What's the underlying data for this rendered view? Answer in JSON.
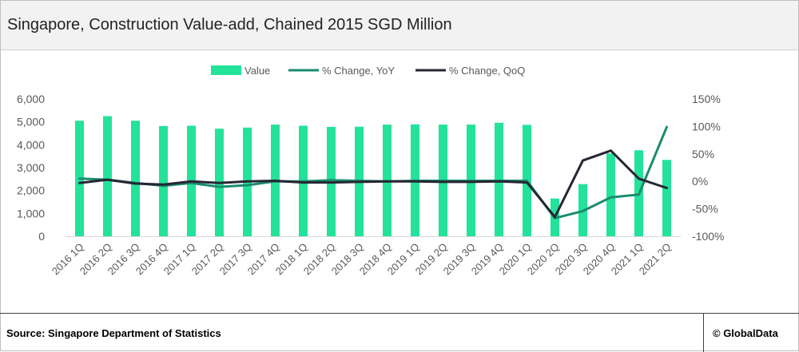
{
  "title": "Singapore, Construction Value-add, Chained 2015 SGD Million",
  "footer": {
    "source": "Source: Singapore Department of Statistics",
    "credit": "© GlobalData"
  },
  "colors": {
    "bar": "#23e29a",
    "yoy": "#1a8c6e",
    "qoq": "#262633"
  },
  "chart_data": {
    "type": "bar",
    "categories": [
      "2016 1Q",
      "2016 2Q",
      "2016 3Q",
      "2016 4Q",
      "2017 1Q",
      "2017 2Q",
      "2017 3Q",
      "2017 4Q",
      "2018 1Q",
      "2018 2Q",
      "2018 3Q",
      "2018 4Q",
      "2019 1Q",
      "2019 2Q",
      "2019 3Q",
      "2019 4Q",
      "2020 1Q",
      "2020 2Q",
      "2020 3Q",
      "2020 4Q",
      "2021 1Q",
      "2021 2Q"
    ],
    "legend": [
      "Value",
      "% Change, YoY",
      "% Change, QoQ"
    ],
    "legend_position": "top-center",
    "y_left": {
      "ticks": [
        "0",
        "1,000",
        "2,000",
        "3,000",
        "4,000",
        "5,000",
        "6,000"
      ],
      "range": [
        0,
        6000
      ]
    },
    "y_right": {
      "ticks": [
        "-100%",
        "-50%",
        "0%",
        "50%",
        "100%",
        "150%"
      ],
      "range": [
        -100,
        150
      ]
    },
    "grid": false,
    "series": [
      {
        "name": "Value",
        "type": "bar",
        "axis": "left",
        "values": [
          5050,
          5250,
          5050,
          4820,
          4830,
          4700,
          4750,
          4880,
          4830,
          4780,
          4790,
          4880,
          4890,
          4880,
          4880,
          4960,
          4870,
          1650,
          2280,
          3620,
          3760,
          3340
        ]
      },
      {
        "name": "% Change, YoY",
        "type": "line",
        "axis": "right",
        "values": [
          5,
          3,
          -3,
          -8,
          -3,
          -10,
          -7,
          0,
          0,
          2,
          1,
          0,
          1,
          1,
          1,
          1,
          1,
          -67,
          -54,
          -29,
          -24,
          99
        ]
      },
      {
        "name": "% Change, QoQ",
        "type": "line",
        "axis": "right",
        "values": [
          -3,
          3,
          -4,
          -6,
          0,
          -3,
          0,
          1,
          -2,
          -2,
          -1,
          0,
          0,
          -1,
          -1,
          0,
          -2,
          -65,
          38,
          56,
          5,
          -12
        ]
      }
    ]
  }
}
